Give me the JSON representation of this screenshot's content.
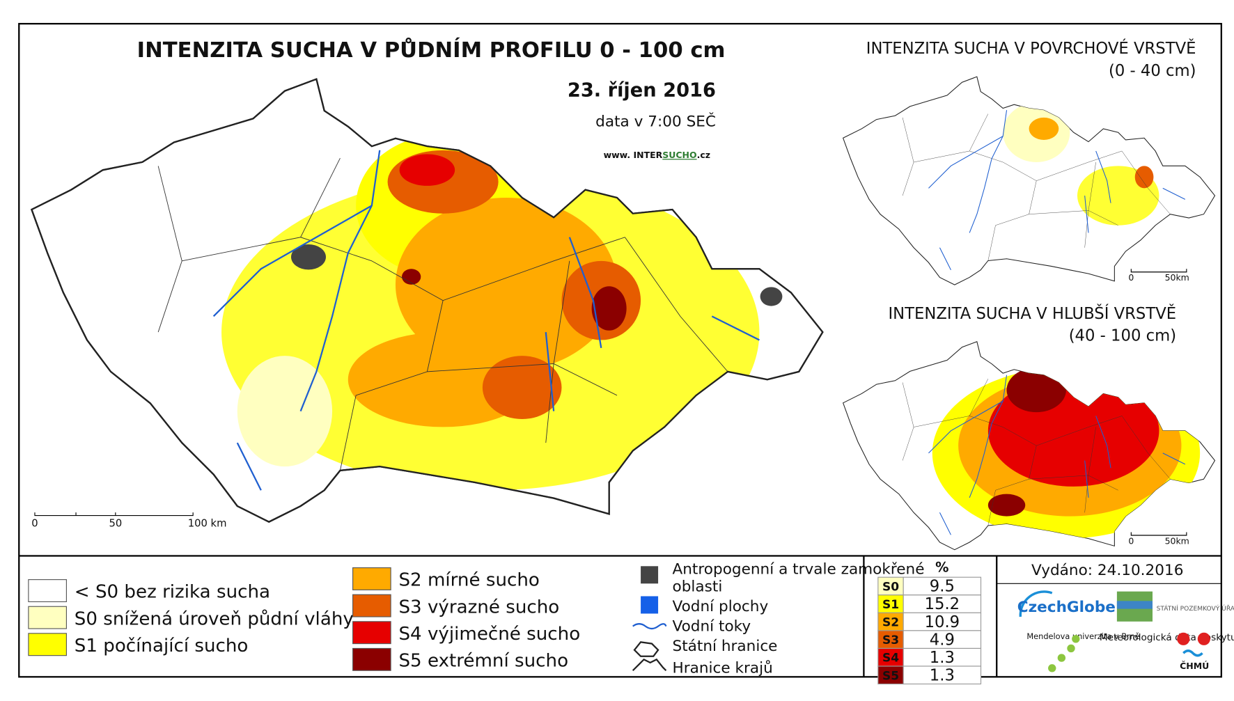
{
  "main_map": {
    "title": "INTENZITA SUCHA V PŮDNÍM PROFILU 0 - 100 cm",
    "date": "23. říjen 2016",
    "time": "data v 7:00 SEČ",
    "website": [
      "www. INTER",
      "SUCHO",
      ".cz"
    ],
    "scale_labels": [
      "0",
      "50",
      "100 km"
    ]
  },
  "inset_surface": {
    "title": "INTENZITA SUCHA V POVRCHOVÉ VRSTVĚ",
    "subtitle": "(0 - 40 cm)",
    "scale_labels": [
      "0",
      "50km"
    ]
  },
  "inset_deep": {
    "title": "INTENZITA SUCHA V HLUBŠÍ VRSTVĚ",
    "subtitle": "(40 - 100 cm)",
    "scale_labels": [
      "0",
      "50km"
    ]
  },
  "legend": {
    "classes": [
      {
        "label": "< S0 bez rizika sucha",
        "color": "#ffffff"
      },
      {
        "label": "S0 snížená úroveň půdní vláhy",
        "color": "#ffffc0"
      },
      {
        "label": "S1 počínající sucho",
        "color": "#ffff00"
      },
      {
        "label": "S2 mírné sucho",
        "color": "#ffaa00"
      },
      {
        "label": "S3 výrazné sucho",
        "color": "#e65c00"
      },
      {
        "label": "S4 výjimečné sucho",
        "color": "#e60000"
      },
      {
        "label": "S5 extrémní sucho",
        "color": "#8b0000"
      }
    ],
    "symbols": [
      "Antropogenní a trvale zamokřené oblasti",
      "Vodní plochy",
      "Vodní toky",
      "Státní hranice",
      "Hranice krajů"
    ]
  },
  "stats": {
    "header": "%",
    "rows": [
      {
        "class": "S0",
        "value": 9.5,
        "color": "#ffffc0"
      },
      {
        "class": "S1",
        "value": 15.2,
        "color": "#ffff00"
      },
      {
        "class": "S2",
        "value": 10.9,
        "color": "#ffaa00"
      },
      {
        "class": "S3",
        "value": 4.9,
        "color": "#e65c00"
      },
      {
        "class": "S4",
        "value": 1.3,
        "color": "#e60000"
      },
      {
        "class": "S5",
        "value": 1.3,
        "color": "#8b0000"
      }
    ]
  },
  "issued": "Vydáno: 24.10.2016",
  "logos": {
    "czechglobe": "CzechGlobe",
    "spu": "STÁTNÍ POZEMKOVÝ ÚŘAD",
    "mendelu": "Mendelova univerzita v Brně",
    "chmu_note": "Meteorologická data poskytuje:",
    "chmu": "ČHMÚ"
  }
}
